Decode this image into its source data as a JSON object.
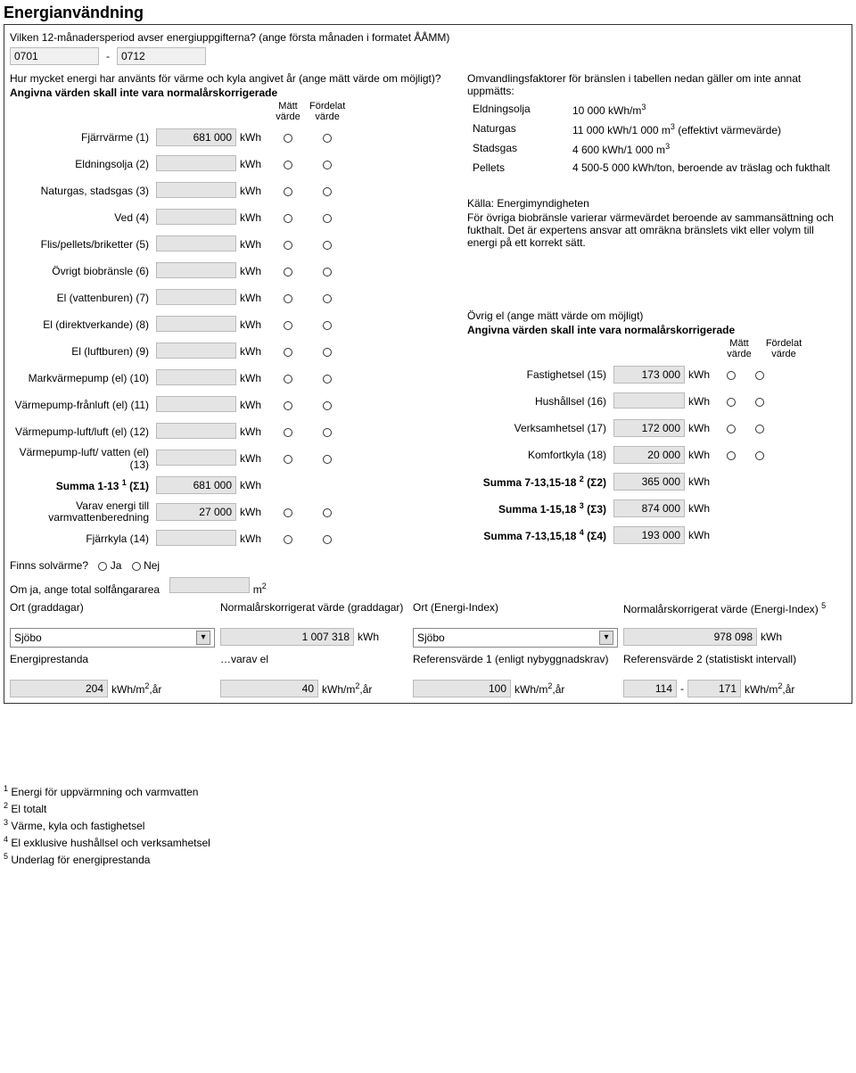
{
  "title": "Energianvändning",
  "intro_period": "Vilken 12-månadersperiod avser energiuppgifterna? (ange första månaden i formatet ÅÅMM)",
  "period_from": "0701",
  "period_to": "0712",
  "left": {
    "note1": "Hur mycket energi har använts för värme och kyla angivet år (ange mätt värde om möjligt)?",
    "note2": "Angivna värden skall inte vara normalårskorrigerade",
    "col_matt": "Mätt värde",
    "col_ford": "Fördelat värde",
    "rows": [
      {
        "label": "Fjärrvärme (1)",
        "value": "681 000",
        "unit": "kWh"
      },
      {
        "label": "Eldningsolja (2)",
        "value": "",
        "unit": "kWh"
      },
      {
        "label": "Naturgas, stadsgas (3)",
        "value": "",
        "unit": "kWh"
      },
      {
        "label": "Ved (4)",
        "value": "",
        "unit": "kWh"
      },
      {
        "label": "Flis/pellets/briketter (5)",
        "value": "",
        "unit": "kWh"
      },
      {
        "label": "Övrigt biobränsle (6)",
        "value": "",
        "unit": "kWh"
      },
      {
        "label": "El (vattenburen) (7)",
        "value": "",
        "unit": "kWh"
      },
      {
        "label": "El (direktverkande) (8)",
        "value": "",
        "unit": "kWh"
      },
      {
        "label": "El (luftburen) (9)",
        "value": "",
        "unit": "kWh"
      },
      {
        "label": "Markvärmepump (el) (10)",
        "value": "",
        "unit": "kWh"
      },
      {
        "label": "Värmepump-frånluft (el) (11)",
        "value": "",
        "unit": "kWh"
      },
      {
        "label": "Värmepump-luft/luft (el) (12)",
        "value": "",
        "unit": "kWh"
      },
      {
        "label": "Värmepump-luft/ vatten (el) (13)",
        "value": "",
        "unit": "kWh"
      }
    ],
    "sum113_label": "Summa 1-13 ",
    "sum113_sup": "1",
    "sum113_sig": "(Σ1)",
    "sum113_value": "681 000",
    "varav_label": "Varav energi till varmvattenberedning",
    "varav_value": "27 000",
    "fjarrkyla_label": "Fjärrkyla (14)",
    "fjarrkyla_value": ""
  },
  "right": {
    "note": "Omvandlingsfaktorer för bränslen i tabellen nedan gäller om inte annat uppmätts:",
    "factors": [
      {
        "name": "Eldningsolja",
        "val": "10 000 kWh/m",
        "sup": "3"
      },
      {
        "name": "Naturgas",
        "val": "11 000 kWh/1 000 m",
        "sup": "3",
        "tail": " (effektivt värmevärde)"
      },
      {
        "name": "Stadsgas",
        "val": "4 600 kWh/1 000 m",
        "sup": "3"
      },
      {
        "name": "Pellets",
        "val": "4 500-5 000 kWh/ton, beroende av träslag och fukthalt"
      }
    ],
    "kalla": "Källa: Energimyndigheten",
    "para": "För övriga biobränsle varierar värmevärdet beroende av sammansättning och fukthalt. Det är expertens ansvar att omräkna bränslets vikt eller volym till energi på ett korrekt sätt.",
    "ovrig_label": "Övrig el (ange mätt värde om möjligt)",
    "ovrig_note": "Angivna värden skall inte vara normalårskorrigerade",
    "col_matt": "Mätt värde",
    "col_ford": "Fördelat värde",
    "rows2": [
      {
        "label": "Fastighetsel (15)",
        "value": "173 000",
        "unit": "kWh"
      },
      {
        "label": "Hushållsel (16)",
        "value": "",
        "unit": "kWh"
      },
      {
        "label": "Verksamhetsel (17)",
        "value": "172 000",
        "unit": "kWh"
      },
      {
        "label": "Komfortkyla (18)",
        "value": "20 000",
        "unit": "kWh"
      }
    ],
    "sum2_label": "Summa 7-13,15-18 ",
    "sum2_sup": "2",
    "sum2_sig": "(Σ2)",
    "sum2_value": "365 000",
    "sum3_label": "Summa 1-15,18 ",
    "sum3_sup": "3",
    "sum3_sig": "(Σ3)",
    "sum3_value": "874 000",
    "sum4_label": "Summa 7-13,15,18 ",
    "sum4_sup": "4",
    "sum4_sig": "(Σ4)",
    "sum4_value": "193 000"
  },
  "solvarme": {
    "q": "Finns solvärme?",
    "ja": "Ja",
    "nej": "Nej",
    "area_label": "Om ja, ange total solfångararea",
    "area_unit": "m",
    "area_sup": "2"
  },
  "bottom": {
    "ort_gd": "Ort (graddagar)",
    "norm_gd": "Normalårskorrigerat värde (graddagar)",
    "ort_ei": "Ort (Energi-Index)",
    "norm_ei": "Normalårskorrigerat värde (Energi-Index) ",
    "norm_ei_sup": "5",
    "sjobo": "Sjöbo",
    "gd_value": "1 007 318",
    "ei_value": "978 098",
    "kwh": "kWh",
    "ep_label": "Energiprestanda",
    "ep_value": "204",
    "ep_unit": "kWh/m",
    "ep_sup": "2",
    "ep_tail": ",år",
    "varav_label": "…varav el",
    "varav_value": "40",
    "ref1_label": "Referensvärde 1 (enligt nybyggnadskrav)",
    "ref1_value": "100",
    "ref2_label": "Referensvärde 2 (statistiskt intervall)",
    "ref2_from": "114",
    "ref2_to": "171"
  },
  "footnotes": [
    "Energi för uppvärmning och varmvatten",
    "El totalt",
    "Värme, kyla och fastighetsel",
    "El exklusive hushållsel och verksamhetsel",
    "Underlag för energiprestanda"
  ]
}
